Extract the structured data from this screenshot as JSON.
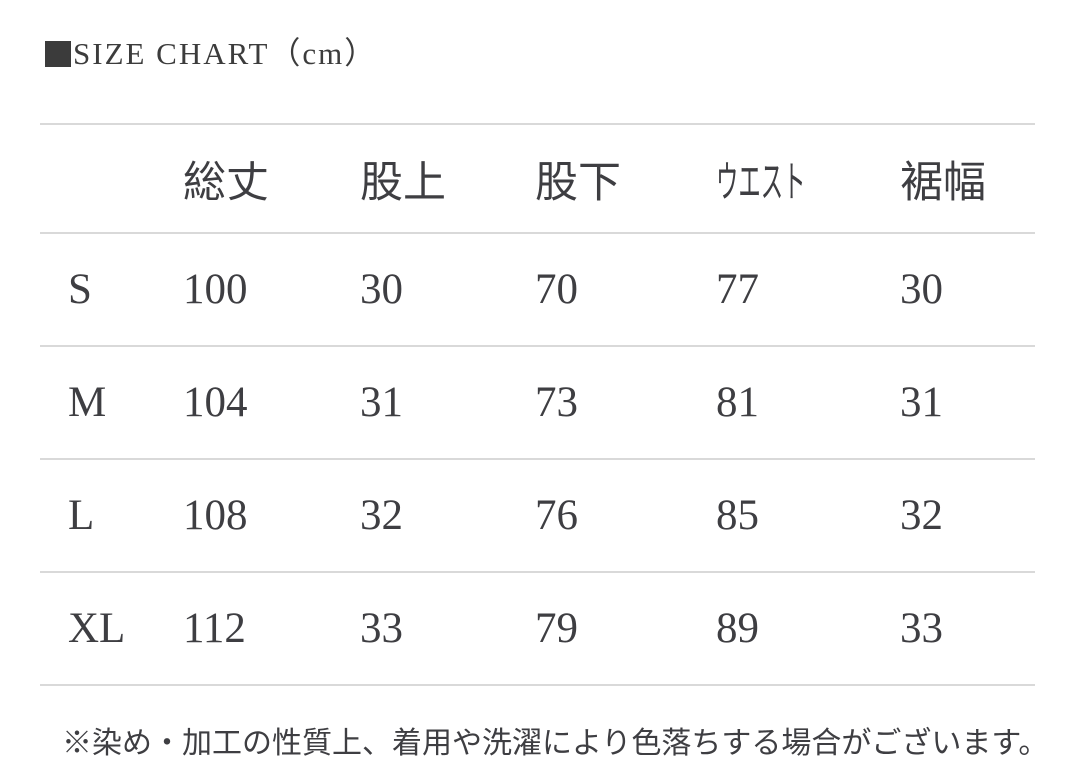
{
  "title": {
    "bullet_icon": "filled-square",
    "text": "SIZE CHART（cm）"
  },
  "chart_data": {
    "type": "table",
    "title": "SIZE CHART（cm）",
    "unit": "cm",
    "row_header_label": "",
    "columns": [
      "総丈",
      "股上",
      "股下",
      "ウエスト",
      "裾幅"
    ],
    "rows": [
      {
        "size": "S",
        "values": [
          100,
          30,
          70,
          77,
          30
        ]
      },
      {
        "size": "M",
        "values": [
          104,
          31,
          73,
          81,
          31
        ]
      },
      {
        "size": "L",
        "values": [
          108,
          32,
          76,
          85,
          32
        ]
      },
      {
        "size": "XL",
        "values": [
          112,
          33,
          79,
          89,
          33
        ]
      }
    ]
  },
  "note_partial": "※染め・加工の性質上、着用や洗濯により色落ちする場合がございます。",
  "colors": {
    "text": "#3e3e42",
    "divider": "#d9d9d9",
    "title_square": "#3b3b3b",
    "background": "#ffffff"
  }
}
